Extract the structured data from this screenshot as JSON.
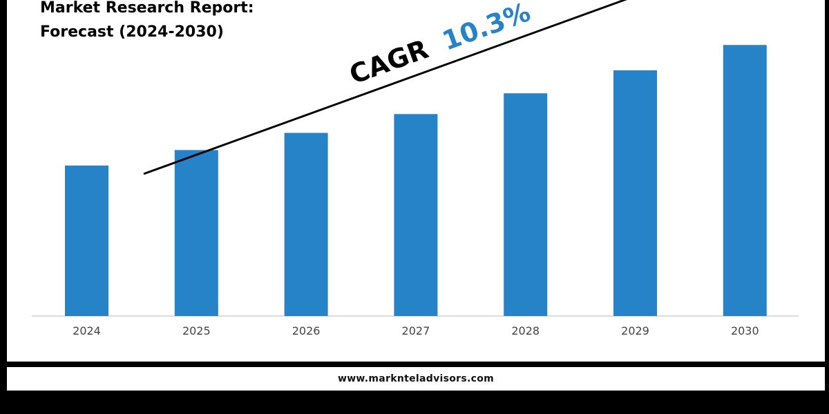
{
  "title": {
    "line1": "Market Research Report:",
    "line2": "Forecast (2024-2030)"
  },
  "chart_data": {
    "type": "bar",
    "categories": [
      "2024",
      "2025",
      "2026",
      "2027",
      "2028",
      "2029",
      "2030"
    ],
    "values": [
      100,
      110.3,
      121.7,
      134.2,
      148.0,
      163.3,
      180.1
    ],
    "ylim": [
      0,
      210
    ],
    "grid": false,
    "legend": "none",
    "bar_color": "#2783c8",
    "annotation": {
      "label": "CAGR",
      "value": "10.3%",
      "label_color": "#000000",
      "value_color": "#2783c8"
    }
  },
  "footer": {
    "url": "www.marknteladvisors.com"
  }
}
